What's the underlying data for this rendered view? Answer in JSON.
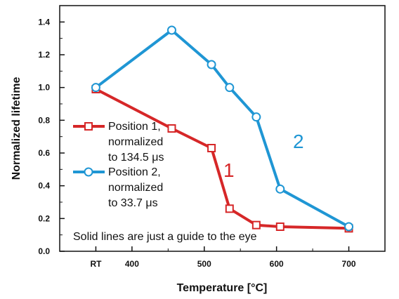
{
  "chart_data": {
    "type": "line",
    "title": "",
    "xlabel": "Temperature [°C]",
    "ylabel": "Normalized lifetime",
    "xlim": [
      300,
      750
    ],
    "ylim": [
      0,
      1.5
    ],
    "x_ticks": [
      {
        "value": 350,
        "label": "RT"
      },
      {
        "value": 400,
        "label": "400"
      },
      {
        "value": 500,
        "label": "500"
      },
      {
        "value": 600,
        "label": "600"
      },
      {
        "value": 700,
        "label": "700"
      }
    ],
    "y_ticks": [
      {
        "value": 0.0,
        "label": "0.0"
      },
      {
        "value": 0.2,
        "label": "0.2"
      },
      {
        "value": 0.4,
        "label": "0.4"
      },
      {
        "value": 0.6,
        "label": "0.6"
      },
      {
        "value": 0.8,
        "label": "0.8"
      },
      {
        "value": 1.0,
        "label": "1.0"
      },
      {
        "value": 1.2,
        "label": "1.2"
      },
      {
        "value": 1.4,
        "label": "1.4"
      }
    ],
    "grid": false,
    "legend_position": "left",
    "series": [
      {
        "tag": "1",
        "legend_lines": [
          "Position 1,",
          "normalized",
          "to 134.5 μs"
        ],
        "color": "#d62728",
        "marker": "square",
        "x": [
          350,
          455,
          510,
          535,
          572,
          605,
          700
        ],
        "y": [
          0.99,
          0.75,
          0.63,
          0.26,
          0.16,
          0.15,
          0.14
        ]
      },
      {
        "tag": "2",
        "legend_lines": [
          "Position 2,",
          "normalized",
          "to 33.7 μs"
        ],
        "color": "#1f96d4",
        "marker": "circle",
        "x": [
          350,
          455,
          510,
          535,
          572,
          605,
          700
        ],
        "y": [
          1.0,
          1.35,
          1.14,
          1.0,
          0.82,
          0.38,
          0.15
        ]
      }
    ],
    "annotations": [
      "Solid lines are just a guide to the eye"
    ]
  }
}
